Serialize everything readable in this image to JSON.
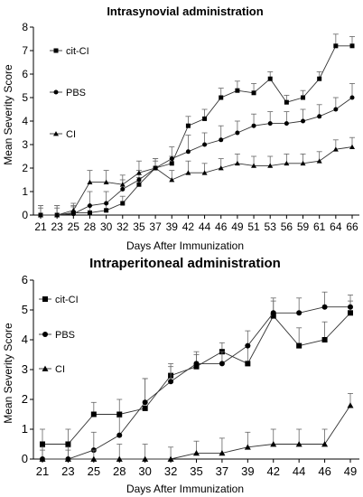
{
  "chart_data": [
    {
      "type": "line",
      "title": "Intrasynovial administration",
      "xlabel": "Days After Immunization",
      "ylabel": "Mean Severity Score",
      "ylim": [
        0,
        8
      ],
      "yticks": [
        "0",
        "1",
        "2",
        "3",
        "4",
        "5",
        "6",
        "7",
        "8"
      ],
      "categories": [
        "21",
        "23",
        "25",
        "28",
        "30",
        "32",
        "35",
        "37",
        "39",
        "42",
        "44",
        "46",
        "49",
        "51",
        "53",
        "56",
        "59",
        "61",
        "64",
        "66"
      ],
      "series": [
        {
          "name": "cit-CI",
          "marker": "square",
          "values": [
            0,
            0,
            0.1,
            0.1,
            0.2,
            0.5,
            1.3,
            2.0,
            2.2,
            3.8,
            4.1,
            5.0,
            5.3,
            5.2,
            5.8,
            4.8,
            5.0,
            5.8,
            7.2,
            7.2
          ],
          "errors": [
            0.4,
            0.4,
            0.3,
            0.3,
            0.3,
            0.3,
            0.3,
            0.3,
            0.3,
            0.4,
            0.4,
            0.4,
            0.4,
            0.4,
            0.3,
            0.3,
            0.3,
            0.3,
            0.5,
            0.4
          ]
        },
        {
          "name": "PBS",
          "marker": "circle",
          "values": [
            0,
            0,
            0.05,
            0.4,
            0.5,
            1.1,
            1.5,
            2.0,
            2.4,
            2.7,
            3.0,
            3.2,
            3.5,
            3.8,
            3.9,
            3.9,
            4.0,
            4.2,
            4.5,
            5.0
          ],
          "errors": [
            0.3,
            0.3,
            0.3,
            0.6,
            0.5,
            0.4,
            0.4,
            0.4,
            0.5,
            0.7,
            0.5,
            0.6,
            0.5,
            0.5,
            0.5,
            0.5,
            0.5,
            0.5,
            0.5,
            0.6
          ]
        },
        {
          "name": "CI",
          "marker": "triangle",
          "values": [
            0,
            0,
            0.2,
            1.4,
            1.4,
            1.3,
            1.8,
            2.0,
            1.5,
            1.8,
            1.8,
            2.0,
            2.2,
            2.1,
            2.1,
            2.2,
            2.2,
            2.3,
            2.8,
            2.9
          ],
          "errors": [
            0.4,
            0.4,
            0.3,
            0.5,
            0.5,
            0.4,
            0.5,
            0.4,
            0.4,
            0.5,
            0.4,
            0.4,
            0.4,
            0.4,
            0.4,
            0.4,
            0.4,
            0.4,
            0.4,
            0.4
          ]
        }
      ]
    },
    {
      "type": "line",
      "title": "Intraperitoneal administration",
      "xlabel": "Days After Immunization",
      "ylabel": "Mean Severity Score",
      "ylim": [
        0,
        6
      ],
      "yticks": [
        "0",
        "1",
        "2",
        "3",
        "4",
        "5",
        "6"
      ],
      "categories": [
        "21",
        "23",
        "25",
        "28",
        "30",
        "32",
        "35",
        "37",
        "39",
        "42",
        "44",
        "46",
        "49"
      ],
      "series": [
        {
          "name": "cit-CI",
          "marker": "square",
          "values": [
            0.5,
            0.5,
            1.5,
            1.5,
            1.7,
            2.8,
            3.1,
            3.6,
            3.2,
            4.8,
            3.8,
            4.0,
            4.9
          ],
          "errors": [
            0.5,
            0.5,
            0.4,
            0.5,
            1.0,
            0.4,
            0.4,
            0.3,
            0.6,
            0.5,
            0.6,
            0.6,
            0.4
          ]
        },
        {
          "name": "PBS",
          "marker": "circle",
          "values": [
            0,
            0,
            0.3,
            0.8,
            1.9,
            2.6,
            3.2,
            3.2,
            3.8,
            4.9,
            4.9,
            5.1,
            5.1
          ],
          "errors": [
            0.4,
            0.4,
            0.6,
            0.6,
            0.8,
            0.5,
            0.4,
            0.4,
            0.5,
            0.5,
            0.5,
            0.5,
            0.4
          ]
        },
        {
          "name": "CI",
          "marker": "triangle",
          "values": [
            0,
            0,
            0,
            0,
            0,
            0,
            0.2,
            0.2,
            0.4,
            0.5,
            0.5,
            0.5,
            1.8
          ],
          "errors": [
            0.3,
            0.3,
            0.3,
            0.5,
            0.5,
            0.4,
            0.4,
            0.5,
            0.5,
            0.5,
            0.5,
            0.5,
            0.4
          ]
        }
      ]
    }
  ]
}
